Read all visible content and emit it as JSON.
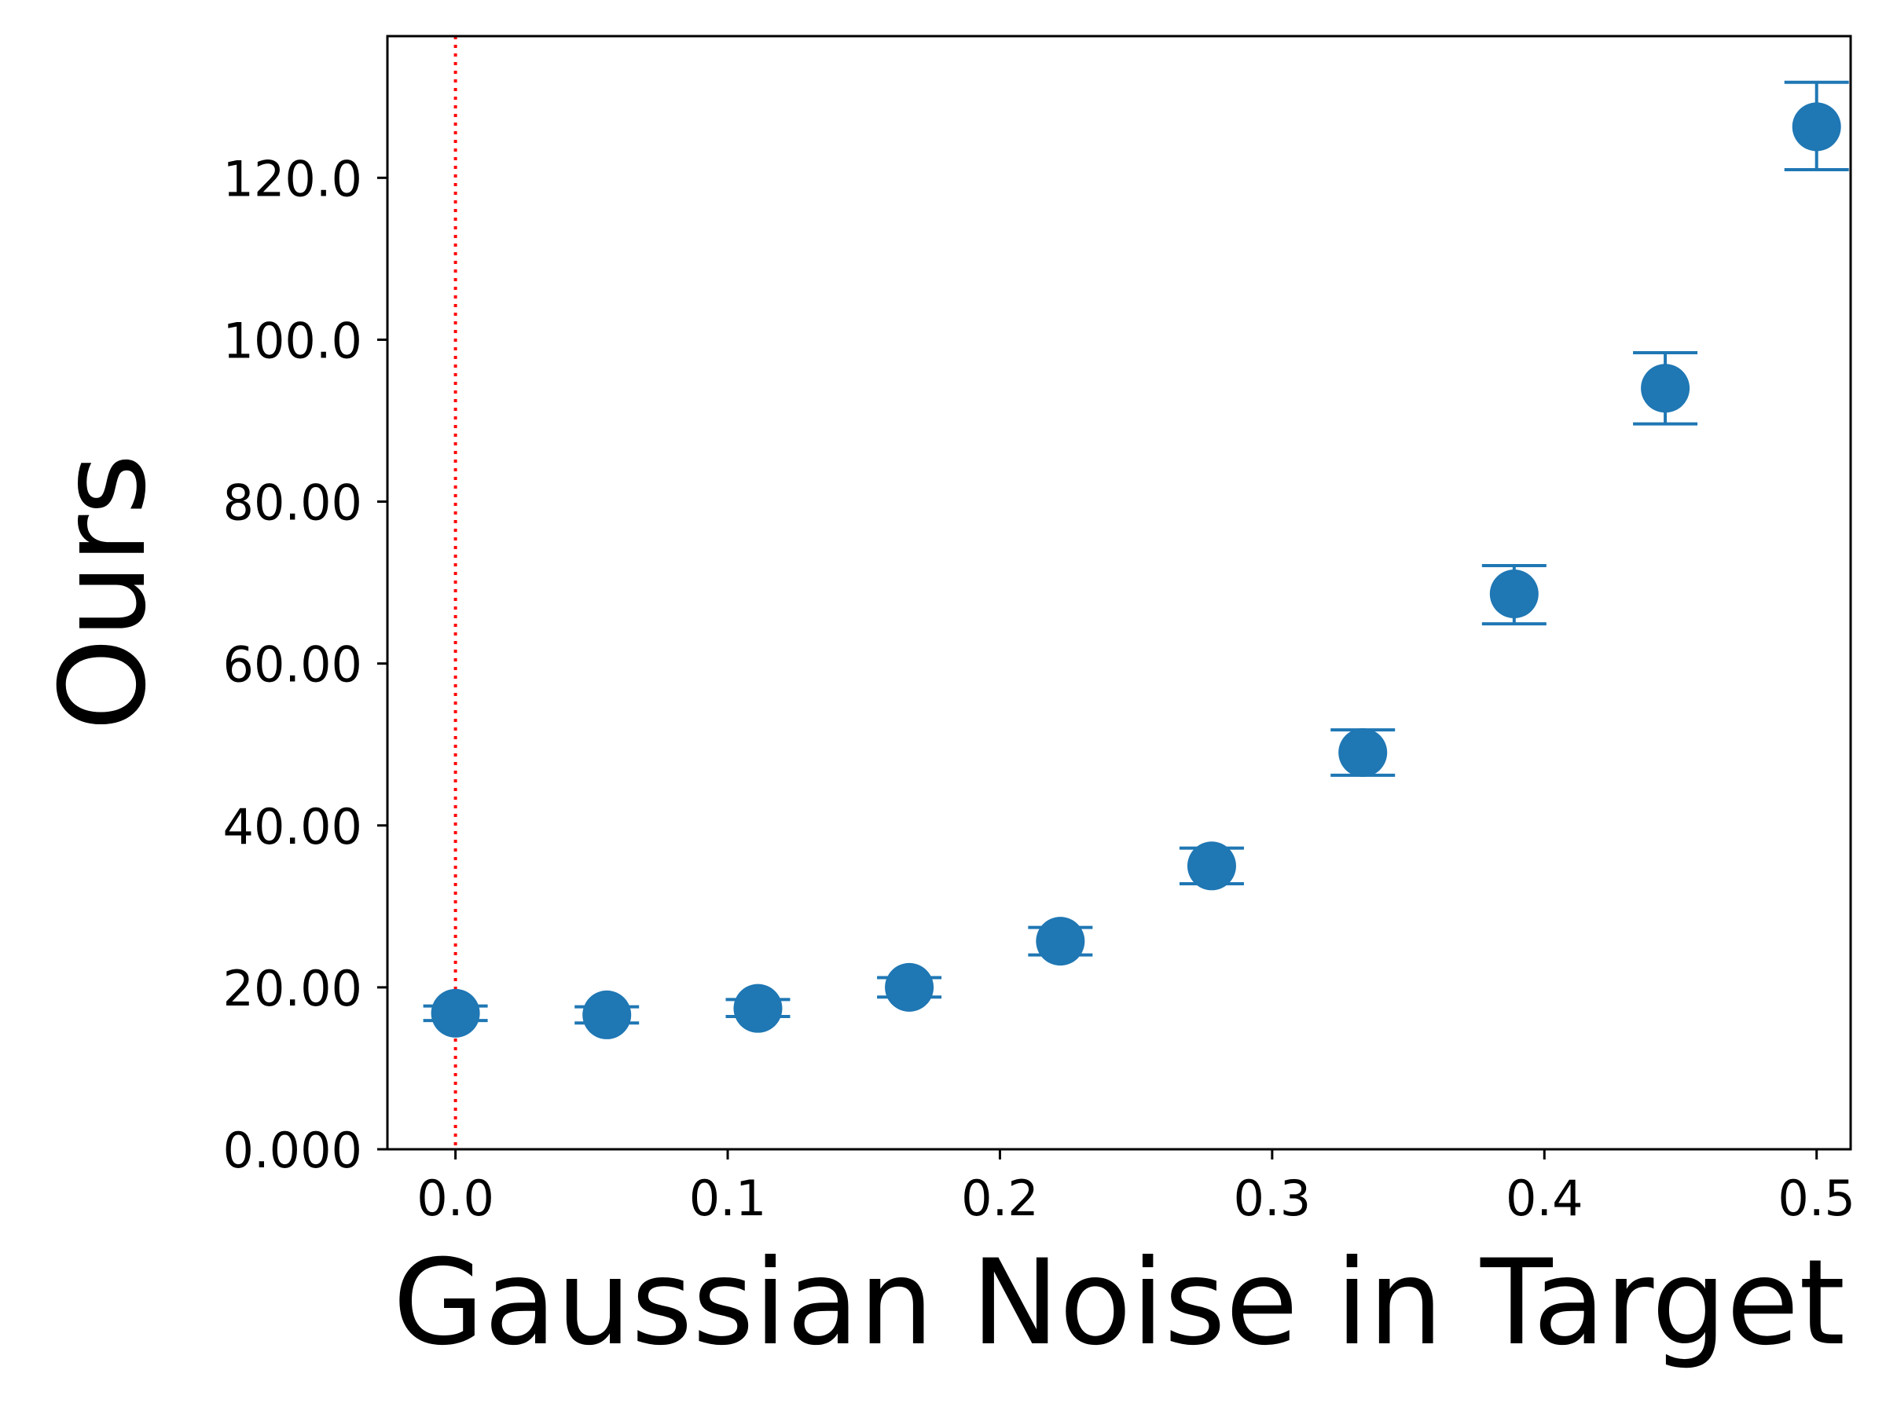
{
  "chart_data": {
    "type": "scatter",
    "title": "",
    "xlabel": "Gaussian Noise in Target",
    "ylabel": "Ours",
    "xlim": [
      -0.025,
      0.5125
    ],
    "ylim": [
      0,
      137.5
    ],
    "x_ticks": [
      0.0,
      0.1,
      0.2,
      0.3,
      0.4,
      0.5
    ],
    "x_tick_labels": [
      "0.0",
      "0.1",
      "0.2",
      "0.3",
      "0.4",
      "0.5"
    ],
    "y_ticks": [
      0,
      20,
      40,
      60,
      80,
      100,
      120
    ],
    "y_tick_labels": [
      "0.000",
      "20.00",
      "40.00",
      "60.00",
      "80.00",
      "100.0",
      "120.0"
    ],
    "grid": false,
    "series": [
      {
        "color": "#1f77b4",
        "marker": "circle",
        "error_bars": true,
        "points": [
          {
            "x": 0.0,
            "y": 16.8,
            "y_low": 15.9,
            "y_high": 17.7
          },
          {
            "x": 0.0556,
            "y": 16.6,
            "y_low": 15.6,
            "y_high": 17.6
          },
          {
            "x": 0.1111,
            "y": 17.4,
            "y_low": 16.4,
            "y_high": 18.5
          },
          {
            "x": 0.1667,
            "y": 20.0,
            "y_low": 18.8,
            "y_high": 21.2
          },
          {
            "x": 0.2222,
            "y": 25.7,
            "y_low": 24.0,
            "y_high": 27.4
          },
          {
            "x": 0.2778,
            "y": 35.0,
            "y_low": 32.8,
            "y_high": 37.2
          },
          {
            "x": 0.3333,
            "y": 49.0,
            "y_low": 46.2,
            "y_high": 51.8
          },
          {
            "x": 0.3889,
            "y": 68.6,
            "y_low": 64.9,
            "y_high": 72.1
          },
          {
            "x": 0.4444,
            "y": 94.0,
            "y_low": 89.6,
            "y_high": 98.4
          },
          {
            "x": 0.5,
            "y": 126.3,
            "y_low": 121.0,
            "y_high": 131.8
          }
        ]
      }
    ],
    "reference_line": {
      "orientation": "vertical",
      "x": 0.0,
      "color": "#ff0000",
      "style": "dotted"
    }
  }
}
